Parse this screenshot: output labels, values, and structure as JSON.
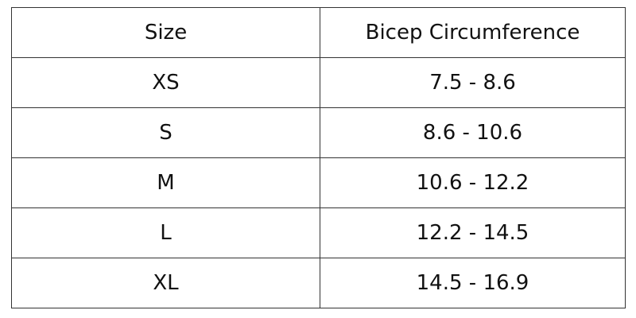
{
  "table": {
    "headers": [
      "Size",
      "Bicep Circumference"
    ],
    "rows": [
      [
        "XS",
        "7.5 - 8.6"
      ],
      [
        "S",
        "8.6 - 10.6"
      ],
      [
        "M",
        "10.6 - 12.2"
      ],
      [
        "L",
        "12.2 - 14.5"
      ],
      [
        "XL",
        "14.5 - 16.9"
      ]
    ]
  }
}
